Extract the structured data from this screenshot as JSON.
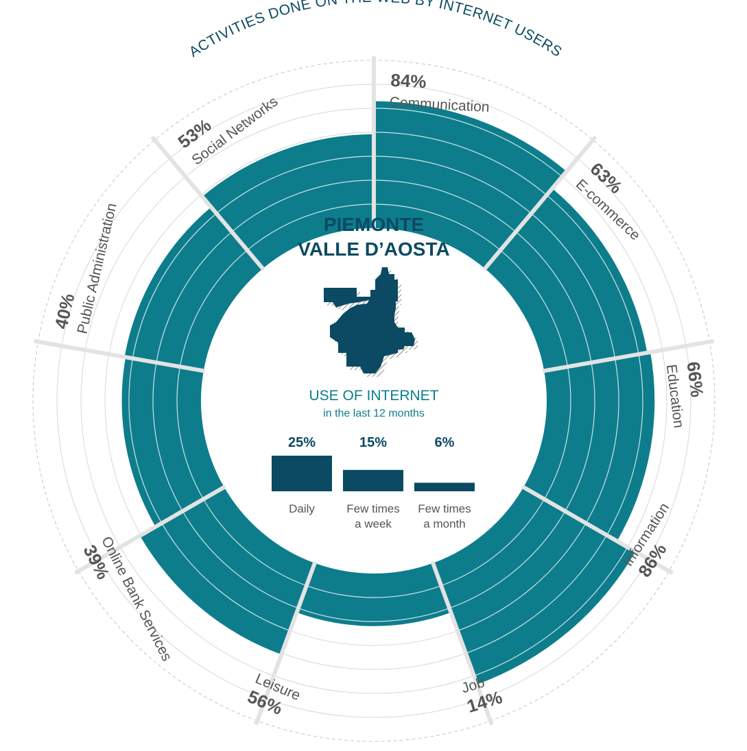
{
  "chart_data": [
    {
      "type": "radial-bar",
      "title": "ACTIVITIES DONE ON THE WEB BY INTERNET USERS",
      "categories": [
        "Communication",
        "E-commerce",
        "Education",
        "Information",
        "Job",
        "Leisure",
        "Online Bank Services",
        "Public Administration",
        "Social Networks"
      ],
      "values": [
        84,
        63,
        66,
        86,
        14,
        56,
        39,
        40,
        53
      ],
      "value_labels": [
        "84%",
        "63%",
        "66%",
        "86%",
        "14%",
        "56%",
        "39%",
        "40%",
        "53%"
      ],
      "unit": "%",
      "grid": true
    },
    {
      "type": "bar",
      "title": "USE OF INTERNET",
      "subtitle": "in the last 12 months",
      "categories": [
        "Daily",
        "Few times a week",
        "Few times a month"
      ],
      "category_lines": [
        [
          "Daily"
        ],
        [
          "Few times",
          "a week"
        ],
        [
          "Few times",
          "a month"
        ]
      ],
      "values": [
        25,
        15,
        6
      ],
      "value_labels": [
        "25%",
        "15%",
        "6%"
      ],
      "unit": "%"
    }
  ],
  "region": {
    "line1": "PIEMONTE",
    "line2": "VALLE D’AOSTA"
  },
  "colors": {
    "ring": "#0d7d8c",
    "dark": "#0b4a62",
    "label": "#555555",
    "grid": "#d6d6d6",
    "spoke": "#e3e3e3"
  },
  "icons": [
    "region-map-icon"
  ]
}
